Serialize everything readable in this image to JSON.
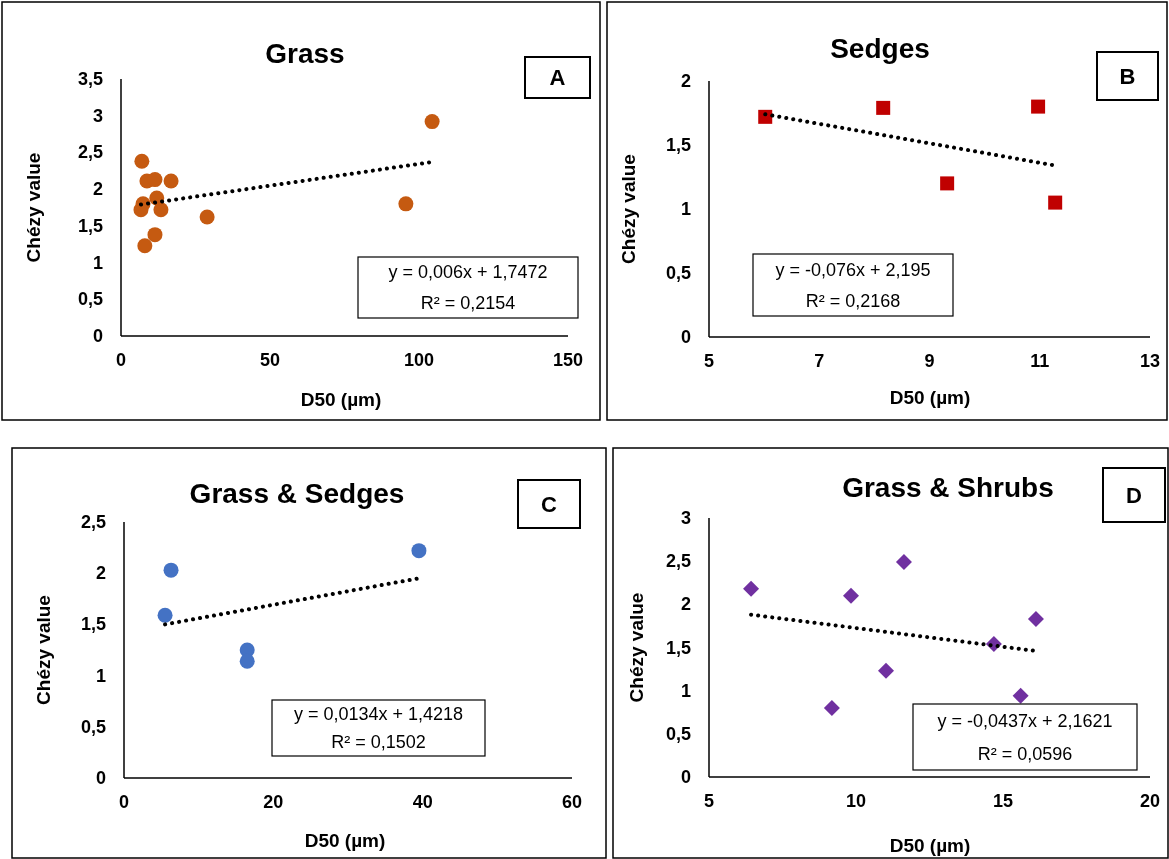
{
  "chart_data": [
    {
      "type": "scatter",
      "title": "Grass",
      "xlabel": "D50 (µm)",
      "ylabel": "Chézy value",
      "annotations": [
        "A",
        "y = 0,006x + 1,7472",
        "R² = 0,2154"
      ],
      "xlim": [
        0,
        150
      ],
      "xticks": [
        0,
        50,
        100,
        150
      ],
      "ylim": [
        0,
        3.5
      ],
      "yticks": [
        0,
        {
          "value": 0.5,
          "label": "0,5"
        },
        1,
        {
          "value": 1.5,
          "label": "1,5"
        },
        2,
        {
          "value": 2.5,
          "label": "2,5"
        },
        3,
        {
          "value": 3.5,
          "label": "3,5"
        }
      ],
      "grid": false,
      "series": [
        {
          "marker": "circle",
          "color": "#c55a11",
          "x": [
            7,
            8.7,
            11.4,
            16.8,
            12,
            7.4,
            6.7,
            13.4,
            28.9,
            11.4,
            8,
            95.6,
            104.4
          ],
          "values": [
            2.38,
            2.11,
            2.13,
            2.11,
            1.88,
            1.8,
            1.72,
            1.72,
            1.62,
            1.38,
            1.23,
            1.8,
            2.92
          ]
        },
        {
          "type": "line",
          "line_style": "dotted",
          "marker": "none",
          "color": "#000000",
          "x": [
            6.7,
            104.4
          ],
          "values": [
            1.79,
            2.37
          ]
        }
      ]
    },
    {
      "type": "scatter",
      "title": "Sedges",
      "xlabel": "D50 (µm)",
      "ylabel": "Chézy value",
      "annotations": [
        "B",
        "y = -0,076x + 2,195",
        "R² = 0,2168"
      ],
      "xlim": [
        5,
        13
      ],
      "xticks": [
        5,
        7,
        9,
        11,
        13
      ],
      "ylim": [
        0,
        2
      ],
      "yticks": [
        0,
        {
          "value": 0.5,
          "label": "0,5"
        },
        1,
        {
          "value": 1.5,
          "label": "1,5"
        },
        2
      ],
      "grid": false,
      "series": [
        {
          "marker": "square",
          "color": "#c00000",
          "x": [
            6.02,
            8.16,
            9.32,
            10.97,
            11.28
          ],
          "values": [
            1.72,
            1.79,
            1.2,
            1.8,
            1.05
          ]
        },
        {
          "type": "line",
          "line_style": "dotted",
          "marker": "none",
          "color": "#000000",
          "x": [
            6.02,
            11.28
          ],
          "values": [
            1.74,
            1.34
          ]
        }
      ]
    },
    {
      "type": "scatter",
      "title": "Grass & Sedges",
      "xlabel": "D50 (µm)",
      "ylabel": "Chézy value",
      "annotations": [
        "C",
        "y = 0,0134x + 1,4218",
        "R² = 0,1502"
      ],
      "xlim": [
        0,
        60
      ],
      "xticks": [
        0,
        20,
        40,
        60
      ],
      "ylim": [
        0,
        2.5
      ],
      "yticks": [
        0,
        {
          "value": 0.5,
          "label": "0,5"
        },
        1,
        {
          "value": 1.5,
          "label": "1,5"
        },
        2,
        {
          "value": 2.5,
          "label": "2,5"
        }
      ],
      "grid": false,
      "series": [
        {
          "marker": "circle",
          "color": "#4472c4",
          "x": [
            5.5,
            6.3,
            16.5,
            16.5,
            39.5
          ],
          "values": [
            1.59,
            2.03,
            1.25,
            1.14,
            2.22
          ]
        },
        {
          "type": "line",
          "line_style": "dotted",
          "marker": "none",
          "color": "#000000",
          "x": [
            5.5,
            39.5
          ],
          "values": [
            1.5,
            1.95
          ]
        }
      ]
    },
    {
      "type": "scatter",
      "title": "Grass & Shrubs",
      "xlabel": "D50 (µm)",
      "ylabel": "Chézy value",
      "annotations": [
        "D",
        "y = -0,0437x + 2,1621",
        "R² = 0,0596"
      ],
      "xlim": [
        5,
        20
      ],
      "xticks": [
        5,
        10,
        15,
        20
      ],
      "ylim": [
        0,
        3
      ],
      "yticks": [
        0,
        {
          "value": 0.5,
          "label": "0,5"
        },
        1,
        {
          "value": 1.5,
          "label": "1,5"
        },
        2,
        {
          "value": 2.5,
          "label": "2,5"
        },
        3
      ],
      "grid": false,
      "series": [
        {
          "marker": "diamond",
          "color": "#7030a0",
          "x": [
            6.43,
            9.18,
            9.83,
            11.02,
            11.63,
            14.69,
            15.6,
            16.12
          ],
          "values": [
            2.18,
            0.8,
            2.1,
            1.23,
            2.49,
            1.54,
            0.94,
            1.83
          ]
        },
        {
          "type": "line",
          "line_style": "dotted",
          "marker": "none",
          "color": "#000000",
          "x": [
            6.43,
            16.12
          ],
          "values": [
            1.88,
            1.46
          ]
        }
      ]
    }
  ]
}
